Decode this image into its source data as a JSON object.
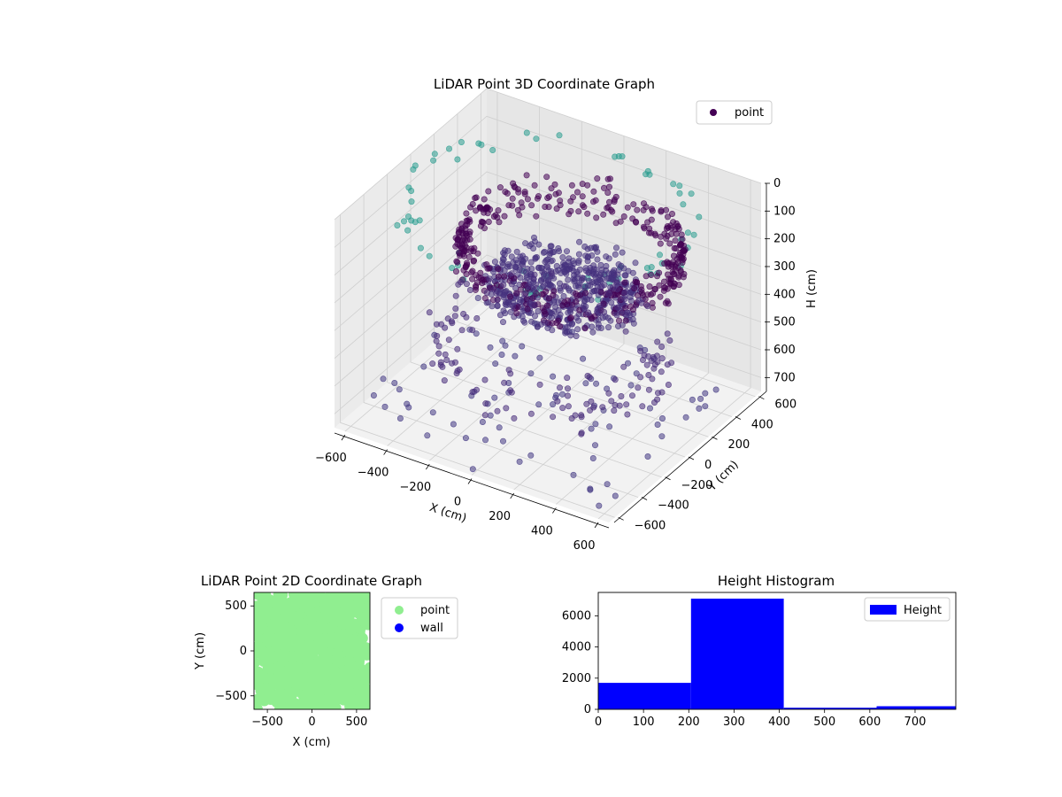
{
  "chart_data": [
    {
      "type": "scatter",
      "title": "LiDAR Point 3D Coordinate Graph",
      "xlabel": "X (cm)",
      "ylabel": "Y (cm)",
      "zlabel": "H (cm)",
      "xlim": [
        -650,
        650
      ],
      "ylim": [
        -650,
        650
      ],
      "zlim": [
        750,
        0
      ],
      "x_ticks": [
        -600,
        -400,
        -200,
        0,
        200,
        400,
        600
      ],
      "y_ticks": [
        -600,
        -400,
        -200,
        0,
        200,
        400,
        600
      ],
      "z_ticks": [
        0,
        100,
        200,
        300,
        400,
        500,
        600,
        700
      ],
      "z_inverted": true,
      "grid": true,
      "legend": {
        "placement": "top-right",
        "entries": [
          {
            "label": "point",
            "color": "#440154"
          }
        ]
      },
      "colormap": "viridis",
      "series": [
        {
          "name": "point",
          "description_points": "ring of points around radius ~550 cm at height ~0-100 cm, dense cluster near center at ~300 cm height, sparse ceiling/floor points"
        }
      ]
    },
    {
      "type": "scatter",
      "title": "LiDAR Point 2D Coordinate Graph",
      "xlabel": "X (cm)",
      "ylabel": "Y (cm)",
      "xlim": [
        -650,
        650
      ],
      "ylim": [
        -650,
        650
      ],
      "x_ticks": [
        -500,
        0,
        500
      ],
      "y_ticks": [
        -500,
        0,
        500
      ],
      "legend": {
        "placement": "outside-right",
        "entries": [
          {
            "label": "point",
            "color": "#90ee90"
          },
          {
            "label": "wall",
            "color": "#0000ff"
          }
        ]
      }
    },
    {
      "type": "bar",
      "title": "Height Histogram",
      "xlabel": "",
      "ylabel": "",
      "bins": [
        [
          0,
          205
        ],
        [
          205,
          410
        ],
        [
          410,
          615
        ],
        [
          615,
          790
        ]
      ],
      "values": [
        1700,
        7100,
        100,
        200
      ],
      "xlim": [
        0,
        790
      ],
      "ylim": [
        0,
        7500
      ],
      "x_ticks": [
        0,
        100,
        200,
        300,
        400,
        500,
        600,
        700
      ],
      "y_ticks": [
        0,
        2000,
        4000,
        6000
      ],
      "color": "#0000ff",
      "legend": {
        "placement": "top-right",
        "entries": [
          {
            "label": "Height",
            "color": "#0000ff"
          }
        ]
      }
    }
  ]
}
